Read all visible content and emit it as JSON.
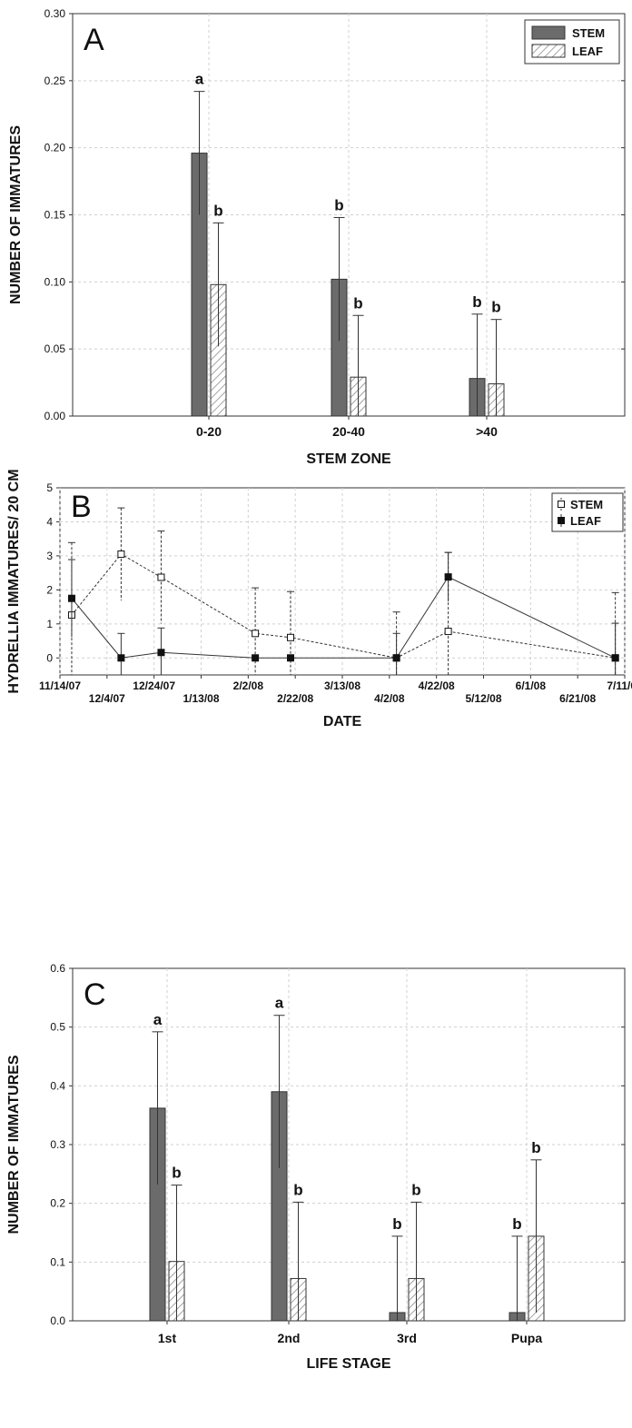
{
  "chart_data": [
    {
      "id": "A",
      "type": "bar",
      "panel_label": "A",
      "title": "",
      "xlabel": "STEM ZONE",
      "ylabel": "NUMBER OF IMMATURES",
      "ylim": [
        0,
        0.3
      ],
      "yticks": [
        "0.00",
        "0.05",
        "0.10",
        "0.15",
        "0.20",
        "0.25",
        "0.30"
      ],
      "categories": [
        "0-20",
        "20-40",
        ">40"
      ],
      "series": [
        {
          "name": "STEM",
          "values": [
            0.196,
            0.102,
            0.028
          ],
          "err": [
            0.046,
            0.046,
            0.048
          ],
          "letters": [
            "a",
            "b",
            "b"
          ]
        },
        {
          "name": "LEAF",
          "values": [
            0.098,
            0.029,
            0.024
          ],
          "err": [
            0.046,
            0.046,
            0.048
          ],
          "letters": [
            "b",
            "b",
            "b"
          ]
        }
      ],
      "grid": true,
      "legend": "top-right"
    },
    {
      "id": "B",
      "type": "line",
      "panel_label": "B",
      "title": "",
      "xlabel": "DATE",
      "ylabel": "HYDRELLIA IMMATURES/ 20 CM",
      "ylim": [
        -0.5,
        5
      ],
      "yticks": [
        "0",
        "1",
        "2",
        "3",
        "4",
        "5"
      ],
      "xticks_upper": [
        "11/14/07",
        "12/24/07",
        "2/2/08",
        "3/13/08",
        "4/22/08",
        "6/1/08",
        "7/11/08"
      ],
      "xticks_lower": [
        "12/4/07",
        "1/13/08",
        "2/22/08",
        "4/2/08",
        "5/12/08",
        "6/21/08"
      ],
      "series": [
        {
          "name": "STEM",
          "x": [
            "2007-11-19",
            "2007-12-10",
            "2007-12-27",
            "2008-02-05",
            "2008-02-20",
            "2008-04-05",
            "2008-04-27",
            "2008-07-07"
          ],
          "y": [
            1.26,
            3.05,
            2.37,
            0.72,
            0.6,
            0.0,
            0.78,
            0.0
          ],
          "err": [
            2.13,
            1.36,
            1.36,
            1.34,
            1.35,
            1.35,
            2.32,
            1.92
          ]
        },
        {
          "name": "LEAF",
          "x": [
            "2007-11-19",
            "2007-12-10",
            "2007-12-27",
            "2008-02-05",
            "2008-02-20",
            "2008-04-05",
            "2008-04-27",
            "2008-07-07"
          ],
          "y": [
            1.75,
            0.0,
            0.16,
            0.0,
            0.0,
            0.0,
            2.38,
            0.0
          ],
          "err": [
            1.14,
            0.72,
            0.72,
            0.0,
            0.0,
            0.72,
            0.72,
            1.02
          ]
        }
      ],
      "grid": true,
      "legend": "top-right"
    },
    {
      "id": "C",
      "type": "bar",
      "panel_label": "C",
      "title": "",
      "xlabel": "LIFE STAGE",
      "ylabel": "NUMBER OF IMMATURES",
      "ylim": [
        0,
        0.6
      ],
      "yticks": [
        "0.0",
        "0.1",
        "0.2",
        "0.3",
        "0.4",
        "0.5",
        "0.6"
      ],
      "categories": [
        "1st",
        "2nd",
        "3rd",
        "Pupa"
      ],
      "series": [
        {
          "name": "STEM",
          "values": [
            0.362,
            0.39,
            0.014,
            0.014
          ],
          "err": [
            0.13,
            0.13,
            0.13,
            0.13
          ],
          "letters": [
            "a",
            "a",
            "b",
            "b"
          ]
        },
        {
          "name": "LEAF",
          "values": [
            0.101,
            0.072,
            0.072,
            0.144
          ],
          "err": [
            0.13,
            0.13,
            0.13,
            0.13
          ],
          "letters": [
            "b",
            "b",
            "b",
            "b"
          ]
        }
      ],
      "grid": true,
      "legend": "none"
    }
  ],
  "colors": {
    "stem_fill": "#6b6b6b",
    "leaf_hatch": "#8a8a8a",
    "axis": "#333333",
    "grid": "#d0d0d0"
  }
}
